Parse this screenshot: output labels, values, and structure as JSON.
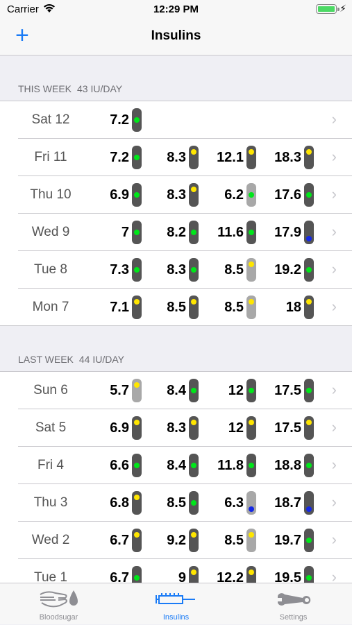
{
  "status": {
    "carrier": "Carrier",
    "time": "12:29 PM"
  },
  "nav": {
    "title": "Insulins"
  },
  "sections": [
    {
      "title": "THIS WEEK",
      "dose": "43 IU/DAY",
      "rows": [
        {
          "day": "Sat 12",
          "readings": [
            {
              "v": "7.2",
              "c": "green",
              "p": "mid",
              "t": "dark"
            },
            null,
            null,
            null
          ]
        },
        {
          "day": "Fri 11",
          "readings": [
            {
              "v": "7.2",
              "c": "green",
              "p": "mid",
              "t": "dark"
            },
            {
              "v": "8.3",
              "c": "yellow",
              "p": "top",
              "t": "dark"
            },
            {
              "v": "12.1",
              "c": "yellow",
              "p": "top",
              "t": "dark"
            },
            {
              "v": "18.3",
              "c": "yellow",
              "p": "top",
              "t": "dark"
            }
          ]
        },
        {
          "day": "Thu 10",
          "readings": [
            {
              "v": "6.9",
              "c": "green",
              "p": "mid",
              "t": "dark"
            },
            {
              "v": "8.3",
              "c": "yellow",
              "p": "top",
              "t": "dark"
            },
            {
              "v": "6.2",
              "c": "green",
              "p": "mid",
              "t": "gray"
            },
            {
              "v": "17.6",
              "c": "green",
              "p": "mid",
              "t": "dark"
            }
          ]
        },
        {
          "day": "Wed 9",
          "readings": [
            {
              "v": "7",
              "c": "green",
              "p": "mid",
              "t": "dark"
            },
            {
              "v": "8.2",
              "c": "green",
              "p": "mid",
              "t": "dark"
            },
            {
              "v": "11.6",
              "c": "green",
              "p": "mid",
              "t": "dark"
            },
            {
              "v": "17.9",
              "c": "blue",
              "p": "bot",
              "t": "dark"
            }
          ]
        },
        {
          "day": "Tue 8",
          "readings": [
            {
              "v": "7.3",
              "c": "green",
              "p": "mid",
              "t": "dark"
            },
            {
              "v": "8.3",
              "c": "green",
              "p": "mid",
              "t": "dark"
            },
            {
              "v": "8.5",
              "c": "yellow",
              "p": "top",
              "t": "gray"
            },
            {
              "v": "19.2",
              "c": "green",
              "p": "mid",
              "t": "dark"
            }
          ]
        },
        {
          "day": "Mon 7",
          "readings": [
            {
              "v": "7.1",
              "c": "yellow",
              "p": "top",
              "t": "dark"
            },
            {
              "v": "8.5",
              "c": "yellow",
              "p": "top",
              "t": "dark"
            },
            {
              "v": "8.5",
              "c": "yellow",
              "p": "top",
              "t": "gray"
            },
            {
              "v": "18",
              "c": "yellow",
              "p": "top",
              "t": "dark"
            }
          ]
        }
      ]
    },
    {
      "title": "LAST WEEK",
      "dose": "44 IU/DAY",
      "rows": [
        {
          "day": "Sun 6",
          "readings": [
            {
              "v": "5.7",
              "c": "yellow",
              "p": "top",
              "t": "gray"
            },
            {
              "v": "8.4",
              "c": "green",
              "p": "mid",
              "t": "dark"
            },
            {
              "v": "12",
              "c": "green",
              "p": "mid",
              "t": "dark"
            },
            {
              "v": "17.5",
              "c": "green",
              "p": "mid",
              "t": "dark"
            }
          ]
        },
        {
          "day": "Sat 5",
          "readings": [
            {
              "v": "6.9",
              "c": "yellow",
              "p": "top",
              "t": "dark"
            },
            {
              "v": "8.3",
              "c": "yellow",
              "p": "top",
              "t": "dark"
            },
            {
              "v": "12",
              "c": "yellow",
              "p": "top",
              "t": "dark"
            },
            {
              "v": "17.5",
              "c": "yellow",
              "p": "top",
              "t": "dark"
            }
          ]
        },
        {
          "day": "Fri 4",
          "readings": [
            {
              "v": "6.6",
              "c": "green",
              "p": "mid",
              "t": "dark"
            },
            {
              "v": "8.4",
              "c": "green",
              "p": "mid",
              "t": "dark"
            },
            {
              "v": "11.8",
              "c": "green",
              "p": "mid",
              "t": "dark"
            },
            {
              "v": "18.8",
              "c": "green",
              "p": "mid",
              "t": "dark"
            }
          ]
        },
        {
          "day": "Thu 3",
          "readings": [
            {
              "v": "6.8",
              "c": "yellow",
              "p": "top",
              "t": "dark"
            },
            {
              "v": "8.5",
              "c": "green",
              "p": "mid",
              "t": "dark"
            },
            {
              "v": "6.3",
              "c": "blue",
              "p": "bot",
              "t": "gray"
            },
            {
              "v": "18.7",
              "c": "blue",
              "p": "bot",
              "t": "dark"
            }
          ]
        },
        {
          "day": "Wed 2",
          "readings": [
            {
              "v": "6.7",
              "c": "yellow",
              "p": "top",
              "t": "dark"
            },
            {
              "v": "9.2",
              "c": "yellow",
              "p": "top",
              "t": "dark"
            },
            {
              "v": "8.5",
              "c": "yellow",
              "p": "top",
              "t": "gray"
            },
            {
              "v": "19.7",
              "c": "green",
              "p": "mid",
              "t": "dark"
            }
          ]
        },
        {
          "day": "Tue 1",
          "readings": [
            {
              "v": "6.7",
              "c": "green",
              "p": "mid",
              "t": "dark"
            },
            {
              "v": "9",
              "c": "yellow",
              "p": "top",
              "t": "dark"
            },
            {
              "v": "12.2",
              "c": "yellow",
              "p": "top",
              "t": "dark"
            },
            {
              "v": "19.5",
              "c": "green",
              "p": "mid",
              "t": "dark"
            }
          ]
        }
      ]
    }
  ],
  "tabs": [
    {
      "label": "Bloodsugar",
      "icon": "bloodsugar-hand-drop-icon",
      "active": false
    },
    {
      "label": "Insulins",
      "icon": "syringe-icon",
      "active": true
    },
    {
      "label": "Settings",
      "icon": "wrench-icon",
      "active": false
    }
  ],
  "colors": {
    "accent": "#1a7bf6",
    "green": "#00e61a",
    "yellow": "#ffe600",
    "blue": "#1428e6"
  }
}
